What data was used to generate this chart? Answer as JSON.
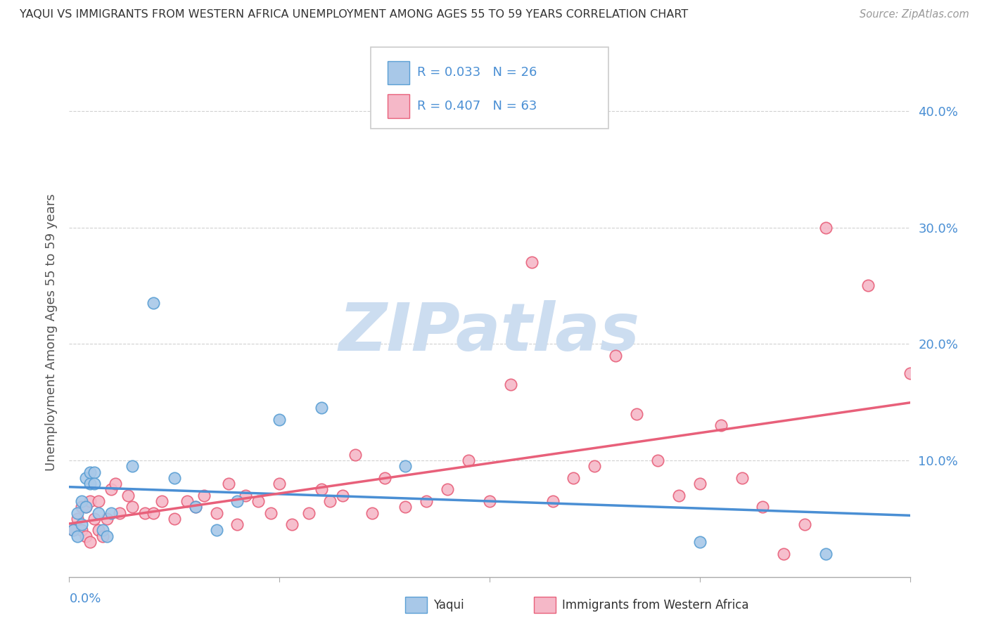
{
  "title": "YAQUI VS IMMIGRANTS FROM WESTERN AFRICA UNEMPLOYMENT AMONG AGES 55 TO 59 YEARS CORRELATION CHART",
  "source": "Source: ZipAtlas.com",
  "ylabel": "Unemployment Among Ages 55 to 59 years",
  "xlim": [
    0.0,
    0.2
  ],
  "ylim": [
    0.0,
    0.42
  ],
  "yticks": [
    0.1,
    0.2,
    0.3,
    0.4
  ],
  "ytick_labels": [
    "10.0%",
    "20.0%",
    "30.0%",
    "40.0%"
  ],
  "xtick_labels": [
    "0.0%",
    "20.0%"
  ],
  "legend_R1": "R = 0.033",
  "legend_N1": "N = 26",
  "legend_R2": "R = 0.407",
  "legend_N2": "N = 63",
  "color_yaqui_fill": "#a8c8e8",
  "color_yaqui_edge": "#5a9fd4",
  "color_waf_fill": "#f5b8c8",
  "color_waf_edge": "#e8607a",
  "color_line_yaqui": "#4a8fd4",
  "color_line_waf": "#e8607a",
  "color_axis_text": "#4a8fd4",
  "watermark_color": "#ccddf0",
  "yaqui_x": [
    0.001,
    0.002,
    0.002,
    0.003,
    0.003,
    0.004,
    0.004,
    0.005,
    0.005,
    0.006,
    0.006,
    0.007,
    0.008,
    0.009,
    0.01,
    0.015,
    0.02,
    0.025,
    0.03,
    0.035,
    0.04,
    0.05,
    0.06,
    0.08,
    0.15,
    0.18
  ],
  "yaqui_y": [
    0.04,
    0.035,
    0.055,
    0.045,
    0.065,
    0.06,
    0.085,
    0.08,
    0.09,
    0.09,
    0.08,
    0.055,
    0.04,
    0.035,
    0.055,
    0.095,
    0.235,
    0.085,
    0.06,
    0.04,
    0.065,
    0.135,
    0.145,
    0.095,
    0.03,
    0.02
  ],
  "waf_x": [
    0.001,
    0.002,
    0.003,
    0.003,
    0.004,
    0.004,
    0.005,
    0.005,
    0.006,
    0.007,
    0.007,
    0.008,
    0.009,
    0.01,
    0.011,
    0.012,
    0.014,
    0.015,
    0.018,
    0.02,
    0.022,
    0.025,
    0.028,
    0.03,
    0.032,
    0.035,
    0.038,
    0.04,
    0.042,
    0.045,
    0.048,
    0.05,
    0.053,
    0.057,
    0.06,
    0.062,
    0.065,
    0.068,
    0.072,
    0.075,
    0.08,
    0.085,
    0.09,
    0.095,
    0.1,
    0.105,
    0.11,
    0.115,
    0.12,
    0.125,
    0.13,
    0.135,
    0.14,
    0.145,
    0.15,
    0.155,
    0.16,
    0.165,
    0.17,
    0.175,
    0.18,
    0.19,
    0.2
  ],
  "waf_y": [
    0.04,
    0.05,
    0.04,
    0.06,
    0.035,
    0.06,
    0.03,
    0.065,
    0.05,
    0.04,
    0.065,
    0.035,
    0.05,
    0.075,
    0.08,
    0.055,
    0.07,
    0.06,
    0.055,
    0.055,
    0.065,
    0.05,
    0.065,
    0.06,
    0.07,
    0.055,
    0.08,
    0.045,
    0.07,
    0.065,
    0.055,
    0.08,
    0.045,
    0.055,
    0.075,
    0.065,
    0.07,
    0.105,
    0.055,
    0.085,
    0.06,
    0.065,
    0.075,
    0.1,
    0.065,
    0.165,
    0.27,
    0.065,
    0.085,
    0.095,
    0.19,
    0.14,
    0.1,
    0.07,
    0.08,
    0.13,
    0.085,
    0.06,
    0.02,
    0.045,
    0.3,
    0.25,
    0.175
  ]
}
